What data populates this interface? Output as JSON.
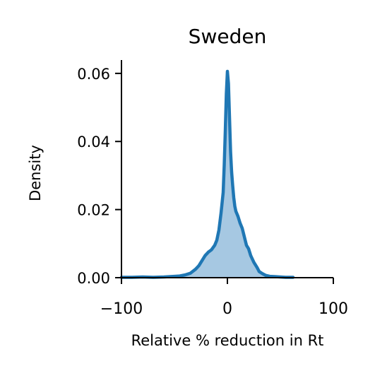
{
  "chart_data": {
    "type": "area",
    "title": "Sweden",
    "xlabel": "Relative % reduction in Rt",
    "ylabel": "Density",
    "xlim": [
      -100,
      100
    ],
    "ylim": [
      0,
      0.0635
    ],
    "x_ticks": [
      -100,
      0,
      100
    ],
    "x_tick_labels": [
      "−100",
      "0",
      "100"
    ],
    "y_ticks": [
      0,
      0.02,
      0.04,
      0.06
    ],
    "y_tick_labels": [
      "0.00",
      "0.02",
      "0.04",
      "0.06"
    ],
    "grid": false,
    "line_color": "#1f77b4",
    "fill_color": "#a6c8e2",
    "series": [
      {
        "x": [
          -100,
          -90,
          -80,
          -70,
          -60,
          -50,
          -45,
          -40,
          -35,
          -30,
          -27,
          -24,
          -21,
          -18,
          -15,
          -12,
          -10,
          -8,
          -6,
          -4,
          -3,
          -2,
          -1,
          0,
          1,
          2,
          3,
          4,
          5,
          6,
          7,
          8,
          10,
          12,
          14,
          16,
          18,
          20,
          22,
          25,
          28,
          30,
          33,
          36,
          40,
          45,
          50,
          55,
          60,
          62
        ],
        "y": [
          0.0001,
          0.0001,
          0.0002,
          0.0001,
          0.0002,
          0.0004,
          0.0005,
          0.0008,
          0.0013,
          0.0025,
          0.0035,
          0.005,
          0.0065,
          0.0075,
          0.0082,
          0.0095,
          0.011,
          0.014,
          0.019,
          0.025,
          0.033,
          0.043,
          0.054,
          0.0606,
          0.057,
          0.047,
          0.037,
          0.031,
          0.027,
          0.0235,
          0.021,
          0.0195,
          0.018,
          0.016,
          0.0145,
          0.012,
          0.0095,
          0.0085,
          0.0065,
          0.0045,
          0.003,
          0.0018,
          0.0012,
          0.0007,
          0.0004,
          0.0003,
          0.0002,
          0.0001,
          0.0001,
          0.0001
        ]
      }
    ]
  }
}
